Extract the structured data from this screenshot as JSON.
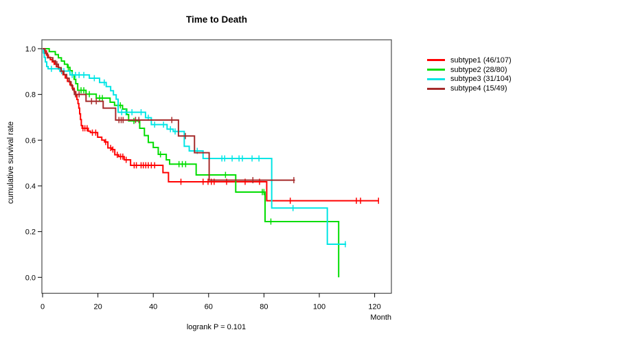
{
  "chart_data": {
    "type": "line",
    "subtype": "kaplan-meier-step-curves",
    "title": "Time to Death",
    "xlabel": "Month",
    "ylabel": "cumulative survival rate",
    "footnote": "logrank P = 0.101",
    "xlim": [
      0,
      126
    ],
    "ylim": [
      0.0,
      1.0
    ],
    "x_ticks": [
      0,
      20,
      40,
      60,
      80,
      100,
      120
    ],
    "y_ticks": [
      0.0,
      0.2,
      0.4,
      0.6,
      0.8,
      1.0
    ],
    "grid": false,
    "legend_position": "right-outside",
    "series": [
      {
        "name": "subtype1",
        "label": "subtype1 (46/107)",
        "color": "#ff0000",
        "steps": [
          [
            0,
            1.0
          ],
          [
            0.7,
            0.99
          ],
          [
            1.4,
            0.972
          ],
          [
            2.1,
            0.962
          ],
          [
            2.8,
            0.952
          ],
          [
            3.5,
            0.942
          ],
          [
            4.2,
            0.932
          ],
          [
            5,
            0.921
          ],
          [
            5.8,
            0.911
          ],
          [
            6.5,
            0.9
          ],
          [
            7.4,
            0.886
          ],
          [
            8.2,
            0.872
          ],
          [
            9,
            0.857
          ],
          [
            9.9,
            0.842
          ],
          [
            10.7,
            0.827
          ],
          [
            11.4,
            0.812
          ],
          [
            12,
            0.795
          ],
          [
            12.4,
            0.778
          ],
          [
            12.8,
            0.76
          ],
          [
            13.1,
            0.74
          ],
          [
            13.4,
            0.715
          ],
          [
            13.7,
            0.69
          ],
          [
            14,
            0.664
          ],
          [
            14.3,
            0.652
          ],
          [
            16.5,
            0.639
          ],
          [
            17.3,
            0.633
          ],
          [
            19.9,
            0.613
          ],
          [
            21.4,
            0.6
          ],
          [
            22.4,
            0.592
          ],
          [
            23.6,
            0.566
          ],
          [
            25,
            0.559
          ],
          [
            26.1,
            0.536
          ],
          [
            27.5,
            0.528
          ],
          [
            29.5,
            0.514
          ],
          [
            31.8,
            0.49
          ],
          [
            43.5,
            0.458
          ],
          [
            45.5,
            0.418
          ],
          [
            81,
            0.335
          ]
        ],
        "end": 121.5,
        "censor_months": [
          14.6,
          15.3,
          16.1,
          18,
          19.2,
          22.8,
          24.6,
          25.4,
          27,
          28.2,
          29,
          30.2,
          33.1,
          33.9,
          35.6,
          36.4,
          37.3,
          38.2,
          39.3,
          40.5,
          50,
          58,
          59.8,
          61,
          62,
          66.5,
          73.2,
          78.4,
          89.5,
          113.4,
          114.9,
          121.4
        ]
      },
      {
        "name": "subtype2",
        "label": "subtype2 (28/80)",
        "color": "#00dd00",
        "steps": [
          [
            0,
            1.0
          ],
          [
            2.4,
            0.987
          ],
          [
            4.6,
            0.974
          ],
          [
            5.7,
            0.96
          ],
          [
            6.8,
            0.946
          ],
          [
            7.9,
            0.932
          ],
          [
            9,
            0.918
          ],
          [
            9.9,
            0.904
          ],
          [
            10.7,
            0.885
          ],
          [
            11.4,
            0.866
          ],
          [
            12,
            0.847
          ],
          [
            12.7,
            0.818
          ],
          [
            15.7,
            0.801
          ],
          [
            19.4,
            0.784
          ],
          [
            24.4,
            0.766
          ],
          [
            26,
            0.752
          ],
          [
            28.9,
            0.736
          ],
          [
            30.4,
            0.712
          ],
          [
            31.1,
            0.684
          ],
          [
            35.1,
            0.652
          ],
          [
            36.8,
            0.62
          ],
          [
            38.2,
            0.59
          ],
          [
            40,
            0.568
          ],
          [
            41.8,
            0.538
          ],
          [
            44.7,
            0.514
          ],
          [
            45.9,
            0.495
          ],
          [
            55.5,
            0.448
          ],
          [
            69.8,
            0.373
          ],
          [
            80.4,
            0.244
          ],
          [
            107,
            0.0
          ]
        ],
        "end": 107,
        "censor_months": [
          9.3,
          13.9,
          14.9,
          16.9,
          20.6,
          21.6,
          28.1,
          33,
          42.6,
          49.3,
          50.5,
          51.7,
          66.1,
          79.4,
          80.0,
          82.5
        ]
      },
      {
        "name": "subtype3",
        "label": "subtype3 (31/104)",
        "color": "#00e5e5",
        "steps": [
          [
            0,
            1.0
          ],
          [
            0.3,
            0.981
          ],
          [
            0.6,
            0.962
          ],
          [
            1,
            0.942
          ],
          [
            1.5,
            0.922
          ],
          [
            2,
            0.912
          ],
          [
            6.2,
            0.902
          ],
          [
            9.9,
            0.885
          ],
          [
            16.9,
            0.871
          ],
          [
            20.6,
            0.852
          ],
          [
            23,
            0.834
          ],
          [
            24.6,
            0.816
          ],
          [
            25.6,
            0.798
          ],
          [
            26.6,
            0.779
          ],
          [
            27.3,
            0.722
          ],
          [
            37.2,
            0.698
          ],
          [
            39.3,
            0.668
          ],
          [
            45,
            0.648
          ],
          [
            47.2,
            0.638
          ],
          [
            51.2,
            0.573
          ],
          [
            53,
            0.553
          ],
          [
            58,
            0.52
          ],
          [
            82.8,
            0.303
          ],
          [
            102.9,
            0.145
          ]
        ],
        "end": 109.7,
        "censor_months": [
          3.2,
          6.9,
          7.7,
          10.7,
          11.9,
          13.2,
          14.9,
          18.7,
          22.3,
          28.6,
          30.1,
          32.3,
          35.6,
          38.2,
          40.5,
          43.7,
          46.2,
          47.9,
          55.9,
          64.8,
          65.8,
          68.5,
          71,
          72.2,
          75.7,
          78.2,
          90.5,
          109.4
        ]
      },
      {
        "name": "subtype4",
        "label": "subtype4 (15/49)",
        "color": "#a52a2a",
        "steps": [
          [
            0,
            1.0
          ],
          [
            0.9,
            0.98
          ],
          [
            1.8,
            0.96
          ],
          [
            3.7,
            0.947
          ],
          [
            4.7,
            0.932
          ],
          [
            5.7,
            0.917
          ],
          [
            6.7,
            0.902
          ],
          [
            7.7,
            0.887
          ],
          [
            8.7,
            0.871
          ],
          [
            9.6,
            0.855
          ],
          [
            10.3,
            0.838
          ],
          [
            10.9,
            0.82
          ],
          [
            11.5,
            0.8
          ],
          [
            15.7,
            0.77
          ],
          [
            21.9,
            0.74
          ],
          [
            26.4,
            0.688
          ],
          [
            49.1,
            0.618
          ],
          [
            54.9,
            0.545
          ],
          [
            60.2,
            0.425
          ]
        ],
        "end": 91.2,
        "censor_months": [
          5.2,
          11.9,
          13.2,
          17.7,
          19.4,
          27.6,
          28.4,
          29.1,
          33.6,
          34.8,
          46.7,
          51.6,
          76,
          90.8
        ]
      }
    ]
  }
}
